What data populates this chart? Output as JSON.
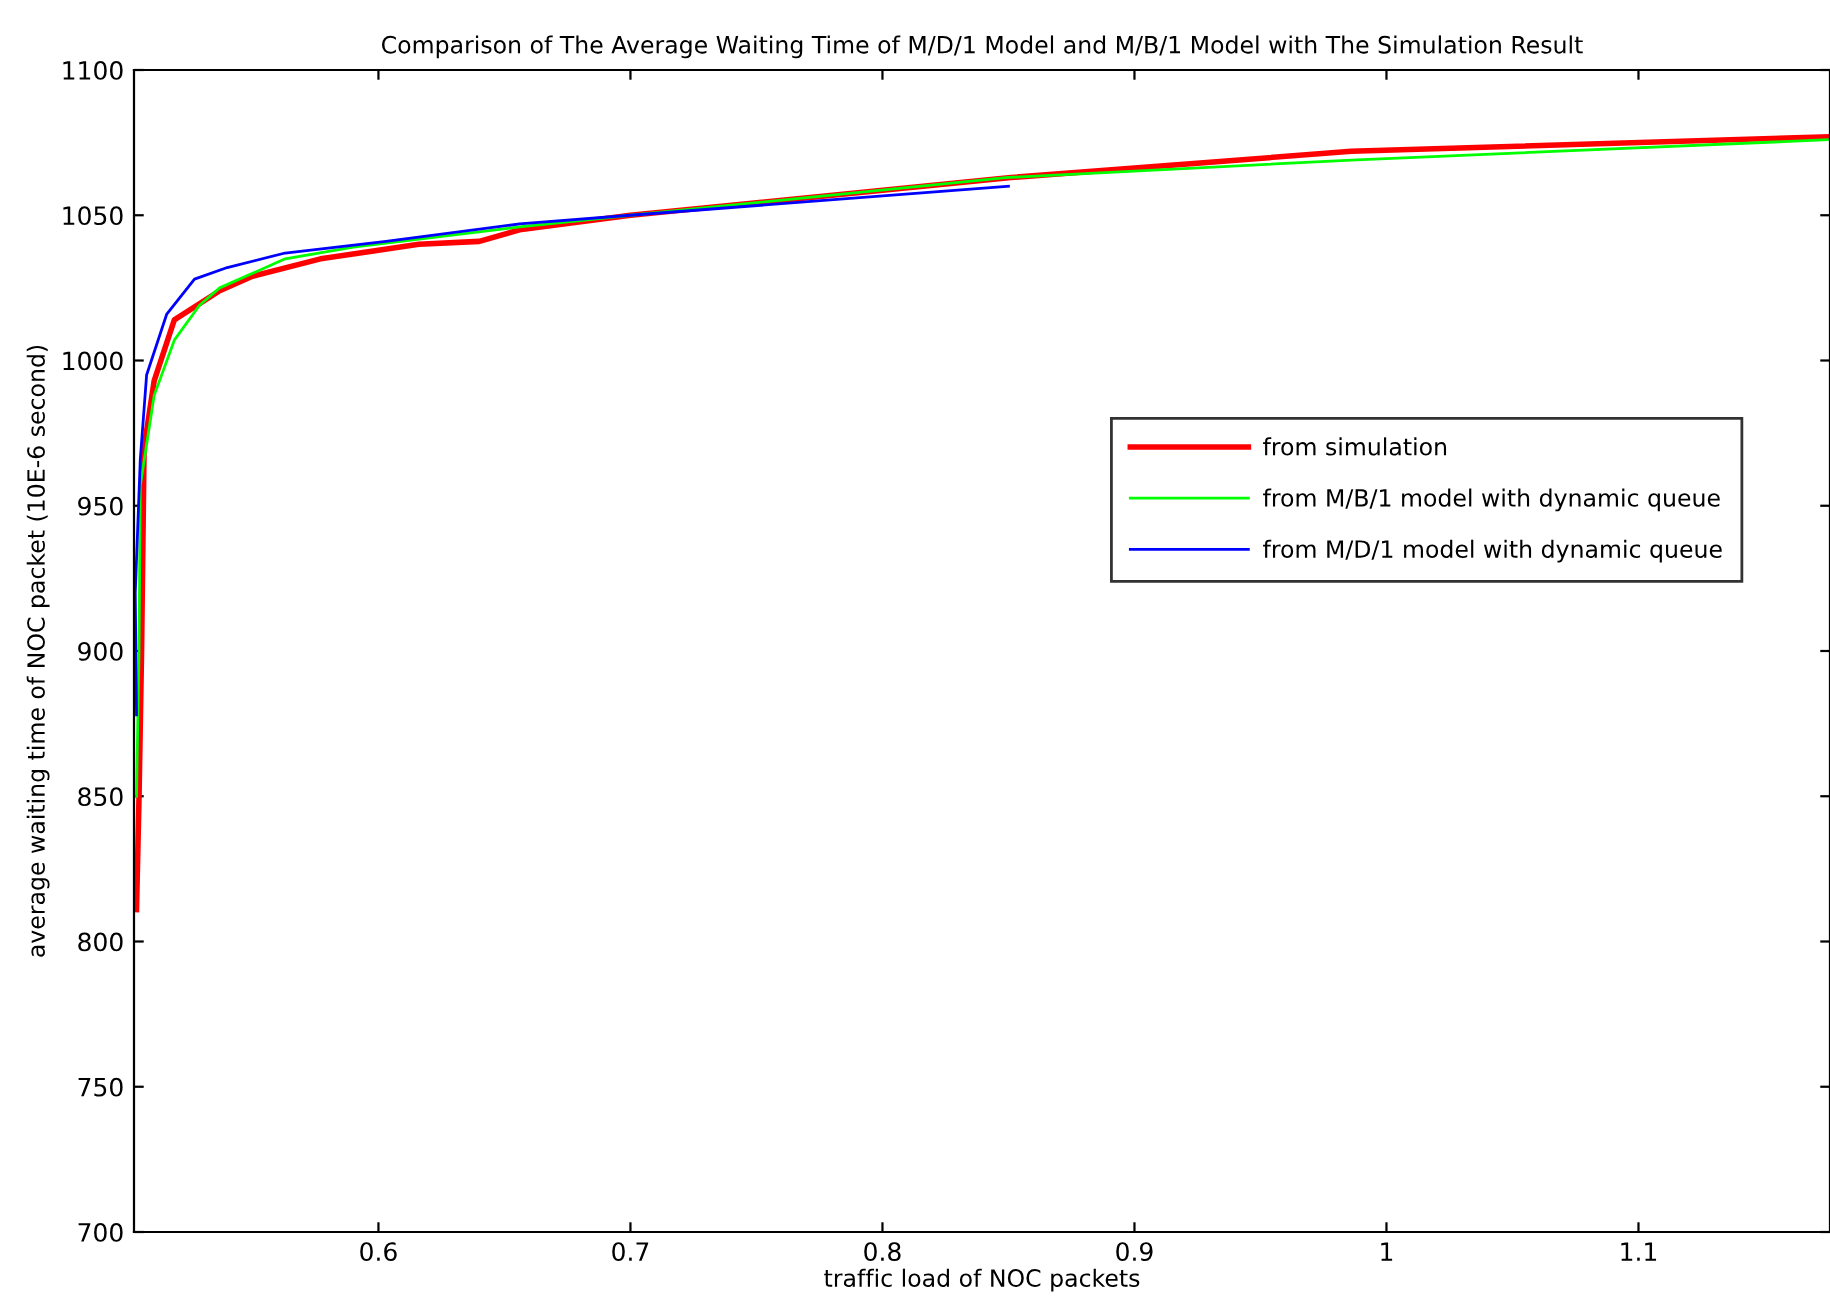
{
  "chart_data": {
    "type": "line",
    "title": "Comparison of The Average Waiting Time of M/D/1 Model and M/B/1 Model with The Simulation Result",
    "xlabel": "traffic load of NOC packets",
    "ylabel": "average waiting time of NOC packet (10E-6 second)",
    "xlim": [
      0.503,
      1.176
    ],
    "ylim": [
      700,
      1100
    ],
    "xticks": [
      0.6,
      0.7,
      0.8,
      0.9,
      1,
      1.1
    ],
    "yticks": [
      700,
      750,
      800,
      850,
      900,
      950,
      1000,
      1050,
      1100
    ],
    "grid": false,
    "legend": "center right",
    "line_style": "solid",
    "marker": "none",
    "series": [
      {
        "name": "from simulation",
        "color": "#ff0000",
        "x": [
          0.504,
          0.505,
          0.506,
          0.507,
          0.511,
          0.519,
          0.537,
          0.55,
          0.577,
          0.616,
          0.64,
          0.656,
          0.7,
          0.851,
          0.986,
          1.175
        ],
        "values": [
          811,
          850,
          900,
          970,
          993,
          1014,
          1024,
          1029,
          1035,
          1040,
          1041,
          1045,
          1050,
          1063,
          1072,
          1077
        ]
      },
      {
        "name": "from M/B/1 model with dynamic queue",
        "color": "#00ff00",
        "x": [
          0.504,
          0.505,
          0.5055,
          0.511,
          0.519,
          0.529,
          0.537,
          0.563,
          0.59,
          0.656,
          0.7,
          0.85,
          0.986,
          1.175
        ],
        "values": [
          850,
          900,
          957,
          988,
          1007,
          1019,
          1025,
          1035,
          1039,
          1046,
          1050,
          1063,
          1069,
          1076
        ]
      },
      {
        "name": "from M/D/1 model with dynamic queue",
        "color": "#0000ff",
        "x": [
          0.504,
          0.5035,
          0.5055,
          0.508,
          0.516,
          0.527,
          0.54,
          0.563,
          0.603,
          0.656,
          0.7,
          0.85
        ],
        "values": [
          878,
          920,
          966,
          995,
          1016,
          1028,
          1032,
          1037,
          1041,
          1047,
          1050,
          1060
        ]
      }
    ]
  }
}
